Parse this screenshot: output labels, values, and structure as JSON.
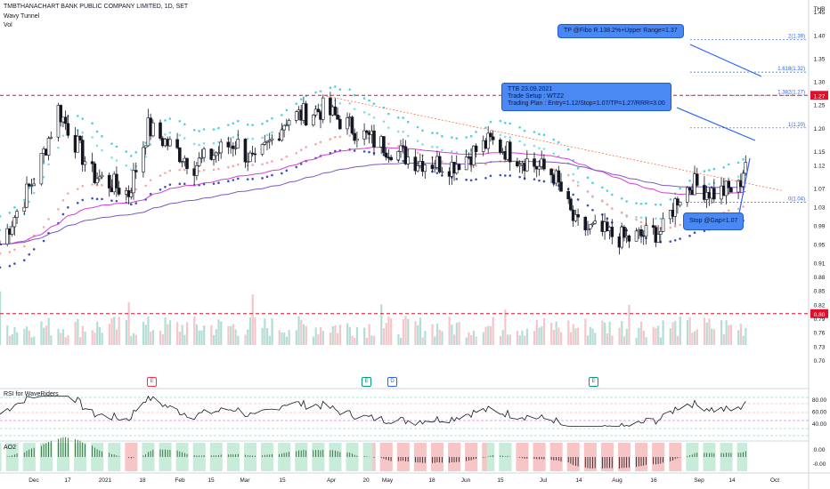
{
  "header": {
    "symbol_line": "TMBTHANACHART BANK PUBLIC COMPANY LIMITED, 1D, SET",
    "indicator_1": "Wavy Tunnel",
    "indicator_2": "Vol"
  },
  "currency": "THB",
  "price_axis": {
    "ticks": [
      "1.45",
      "1.40",
      "1.35",
      "1.30",
      "1.27",
      "1.25",
      "1.20",
      "1.15",
      "1.12",
      "1.07",
      "1.03",
      "0.99",
      "0.95",
      "0.91",
      "0.88",
      "0.85",
      "0.82",
      "0.80",
      "0.79",
      "0.76",
      "0.73",
      "0.70"
    ],
    "highlight_labels": [
      "1.27",
      "0.80"
    ]
  },
  "time_axis": {
    "labels": [
      "Dec",
      "17",
      "2021",
      "18",
      "Feb",
      "15",
      "Mar",
      "15",
      "Apr",
      "20",
      "May",
      "18",
      "Jun",
      "15",
      "Jul",
      "14",
      "Aug",
      "16",
      "Sep",
      "14",
      "Oct"
    ]
  },
  "callouts": {
    "tp": "TP @Fibo R.138.2%+Upper Range=1.37",
    "setup_line1": "TTB 23.09.2021",
    "setup_line2": "Trade Setup : WTZ2",
    "setup_line3": "Trading Plan : Entry=1.12/Stop=1.07/TP=1.27/RRR=3.00",
    "stop": "Stop @Gap=1.07"
  },
  "fib_levels": [
    {
      "label": "2(1.39)"
    },
    {
      "label": "1.618(1.32)"
    },
    {
      "label": "1.382(1.27)"
    },
    {
      "label": "1(1.20)"
    },
    {
      "label": "0(1.04)"
    }
  ],
  "markers": [
    {
      "letter": "E",
      "color": "#f23645"
    },
    {
      "letter": "E",
      "color": "#089981"
    },
    {
      "letter": "D",
      "color": "#2962ff"
    },
    {
      "letter": "E",
      "color": "#089981"
    }
  ],
  "rsi": {
    "label": "RSI for WaveRiders",
    "ticks": [
      "80.00",
      "60.00",
      "40.00"
    ]
  },
  "ao": {
    "label": "AO2",
    "ticks": [
      "0.00",
      "-0.00"
    ]
  },
  "colors": {
    "up": "#089981",
    "down": "#131722",
    "resistance": "#e0102a",
    "magenta_ma": "#d93ad6",
    "blue_line": "#2962ff",
    "callout": "#4a89f3"
  },
  "chart_data": {
    "type": "candlestick",
    "ylim": [
      0.7,
      1.46
    ],
    "horizontal_levels": [
      1.27,
      0.8
    ],
    "x_range": [
      "2020-11-20",
      "2021-10-05"
    ],
    "anchor_points": [
      {
        "date": "2020-11-20",
        "close": 0.95
      },
      {
        "date": "2020-12-05",
        "close": 1.1
      },
      {
        "date": "2020-12-14",
        "close": 1.24
      },
      {
        "date": "2020-12-28",
        "close": 1.1
      },
      {
        "date": "2021-01-12",
        "close": 1.06
      },
      {
        "date": "2021-01-20",
        "close": 1.2
      },
      {
        "date": "2021-02-08",
        "close": 1.12
      },
      {
        "date": "2021-02-25",
        "close": 1.17
      },
      {
        "date": "2021-03-05",
        "close": 1.12
      },
      {
        "date": "2021-03-18",
        "close": 1.22
      },
      {
        "date": "2021-04-02",
        "close": 1.24
      },
      {
        "date": "2021-04-20",
        "close": 1.18
      },
      {
        "date": "2021-05-10",
        "close": 1.13
      },
      {
        "date": "2021-05-25",
        "close": 1.12
      },
      {
        "date": "2021-06-10",
        "close": 1.17
      },
      {
        "date": "2021-06-28",
        "close": 1.12
      },
      {
        "date": "2021-07-06",
        "close": 1.1
      },
      {
        "date": "2021-07-15",
        "close": 0.99
      },
      {
        "date": "2021-08-05",
        "close": 0.96
      },
      {
        "date": "2021-08-20",
        "close": 0.98
      },
      {
        "date": "2021-08-26",
        "close": 1.05
      },
      {
        "date": "2021-09-01",
        "close": 1.08
      },
      {
        "date": "2021-09-10",
        "close": 1.06
      },
      {
        "date": "2021-09-20",
        "close": 1.07
      },
      {
        "date": "2021-09-23",
        "close": 1.13
      }
    ]
  }
}
